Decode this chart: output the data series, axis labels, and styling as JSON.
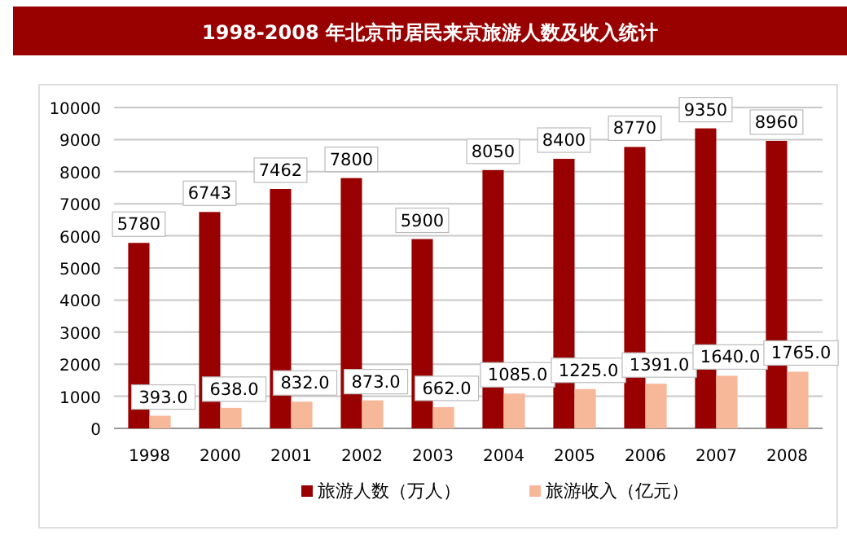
{
  "chart_data": {
    "type": "bar",
    "title": "1998-2008 年北京市居民来京旅游人数及收入统计",
    "categories": [
      "1998",
      "2000",
      "2001",
      "2002",
      "2003",
      "2004",
      "2005",
      "2006",
      "2007",
      "2008"
    ],
    "series": [
      {
        "name": "旅游人数（万人）",
        "color": "#990000",
        "values": [
          5780,
          6743,
          7462,
          7800,
          5900,
          8050,
          8400,
          8770,
          9350,
          8960
        ],
        "value_labels": [
          "5780",
          "6743",
          "7462",
          "7800",
          "5900",
          "8050",
          "8400",
          "8770",
          "9350",
          "8960"
        ]
      },
      {
        "name": "旅游收入（亿元）",
        "color": "#f7b89a",
        "values": [
          393,
          638,
          832,
          873,
          662,
          1085,
          1225,
          1391,
          1640,
          1765
        ],
        "value_labels": [
          "393.0",
          "638.0",
          "832.0",
          "873.0",
          "662.0",
          "1085.0",
          "1225.0",
          "1391.0",
          "1640.0",
          "1765.0"
        ]
      }
    ],
    "ylim": [
      0,
      10000
    ],
    "yticks": [
      0,
      1000,
      2000,
      3000,
      4000,
      5000,
      6000,
      7000,
      8000,
      9000,
      10000
    ],
    "grid": "y",
    "legend": "bottom"
  }
}
